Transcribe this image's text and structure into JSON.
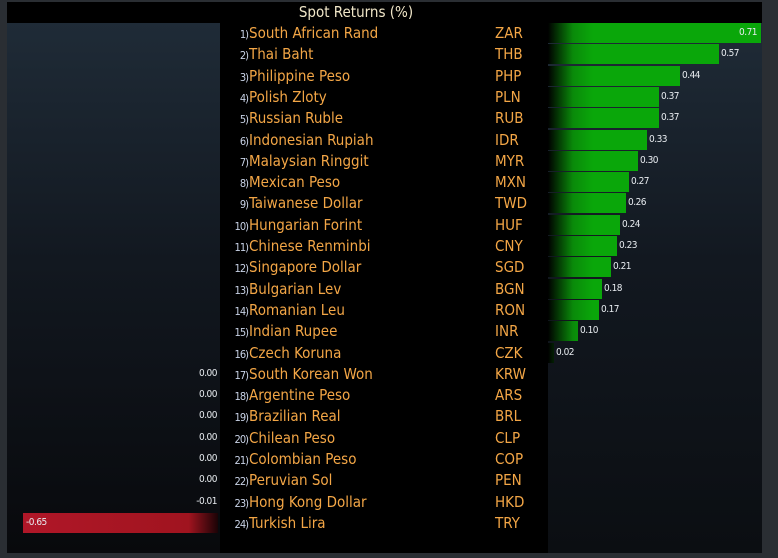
{
  "chart_data": {
    "type": "bar",
    "orientation": "horizontal",
    "title": "Spot Returns (%)",
    "rows": [
      {
        "rank": "1)",
        "name": "South African Rand",
        "code": "ZAR",
        "value": 0.71,
        "label": "0.71"
      },
      {
        "rank": "2)",
        "name": "Thai Baht",
        "code": "THB",
        "value": 0.57,
        "label": "0.57"
      },
      {
        "rank": "3)",
        "name": "Philippine Peso",
        "code": "PHP",
        "value": 0.44,
        "label": "0.44"
      },
      {
        "rank": "4)",
        "name": "Polish Zloty",
        "code": "PLN",
        "value": 0.37,
        "label": "0.37"
      },
      {
        "rank": "5)",
        "name": "Russian Ruble",
        "code": "RUB",
        "value": 0.37,
        "label": "0.37"
      },
      {
        "rank": "6)",
        "name": "Indonesian Rupiah",
        "code": "IDR",
        "value": 0.33,
        "label": "0.33"
      },
      {
        "rank": "7)",
        "name": "Malaysian Ringgit",
        "code": "MYR",
        "value": 0.3,
        "label": "0.30"
      },
      {
        "rank": "8)",
        "name": "Mexican Peso",
        "code": "MXN",
        "value": 0.27,
        "label": "0.27"
      },
      {
        "rank": "9)",
        "name": "Taiwanese Dollar",
        "code": "TWD",
        "value": 0.26,
        "label": "0.26"
      },
      {
        "rank": "10)",
        "name": "Hungarian Forint",
        "code": "HUF",
        "value": 0.24,
        "label": "0.24"
      },
      {
        "rank": "11)",
        "name": "Chinese Renminbi",
        "code": "CNY",
        "value": 0.23,
        "label": "0.23"
      },
      {
        "rank": "12)",
        "name": "Singapore Dollar",
        "code": "SGD",
        "value": 0.21,
        "label": "0.21"
      },
      {
        "rank": "13)",
        "name": "Bulgarian Lev",
        "code": "BGN",
        "value": 0.18,
        "label": "0.18"
      },
      {
        "rank": "14)",
        "name": "Romanian Leu",
        "code": "RON",
        "value": 0.17,
        "label": "0.17"
      },
      {
        "rank": "15)",
        "name": "Indian Rupee",
        "code": "INR",
        "value": 0.1,
        "label": "0.10"
      },
      {
        "rank": "16)",
        "name": "Czech Koruna",
        "code": "CZK",
        "value": 0.02,
        "label": "0.02"
      },
      {
        "rank": "17)",
        "name": "South Korean Won",
        "code": "KRW",
        "value": 0.0,
        "label": "0.00"
      },
      {
        "rank": "18)",
        "name": "Argentine Peso",
        "code": "ARS",
        "value": 0.0,
        "label": "0.00"
      },
      {
        "rank": "19)",
        "name": "Brazilian Real",
        "code": "BRL",
        "value": 0.0,
        "label": "0.00"
      },
      {
        "rank": "20)",
        "name": "Chilean Peso",
        "code": "CLP",
        "value": 0.0,
        "label": "0.00"
      },
      {
        "rank": "21)",
        "name": "Colombian Peso",
        "code": "COP",
        "value": 0.0,
        "label": "0.00"
      },
      {
        "rank": "22)",
        "name": "Peruvian Sol",
        "code": "PEN",
        "value": 0.0,
        "label": "0.00"
      },
      {
        "rank": "23)",
        "name": "Hong Kong Dollar",
        "code": "HKD",
        "value": -0.01,
        "label": "-0.01"
      },
      {
        "rank": "24)",
        "name": "Turkish Lira",
        "code": "TRY",
        "value": -0.65,
        "label": "-0.65"
      }
    ],
    "xlim": [
      -0.71,
      0.71
    ],
    "colors": {
      "positive": "#0aa70a",
      "negative": "#a0141f"
    }
  }
}
